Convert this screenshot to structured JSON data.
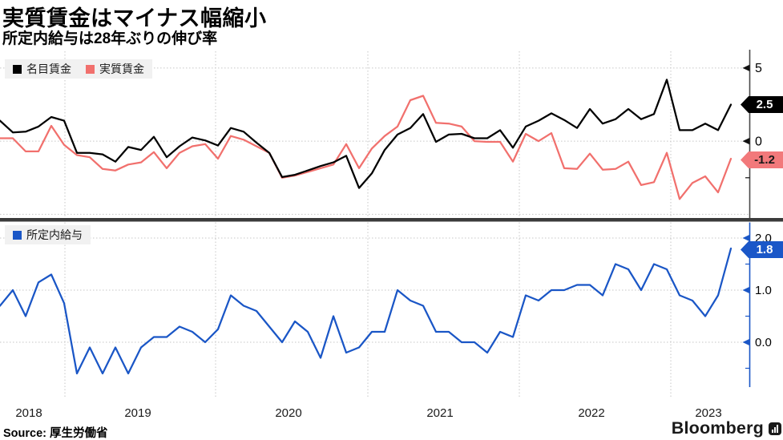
{
  "header": {
    "title": "実質賃金はマイナス幅縮小",
    "subtitle": "所定内給与は28年ぶりの伸び率"
  },
  "footer": {
    "source_label": "Source:",
    "source_value": "厚生労働省",
    "brand": "Bloomberg"
  },
  "colors": {
    "nominal_line": "#000000",
    "real_line": "#F1706D",
    "scheduled_line": "#1A56C6",
    "gridline": "#C6C6C6",
    "top_axis": "#4A4A4A",
    "bottom_axis": "#1A56C6",
    "divider": "#3B3B3B",
    "legend_bg": "#F1F1F1"
  },
  "chart_data": {
    "type": "line",
    "frequency": "monthly",
    "unit": "% YoY",
    "x_year_labels": [
      "2018",
      "2019",
      "2020",
      "2021",
      "2022",
      "2023"
    ],
    "months": [
      "2018-08",
      "2018-09",
      "2018-10",
      "2018-11",
      "2018-12",
      "2019-01",
      "2019-02",
      "2019-03",
      "2019-04",
      "2019-05",
      "2019-06",
      "2019-07",
      "2019-08",
      "2019-09",
      "2019-10",
      "2019-11",
      "2019-12",
      "2020-01",
      "2020-02",
      "2020-03",
      "2020-04",
      "2020-05",
      "2020-06",
      "2020-07",
      "2020-08",
      "2020-09",
      "2020-10",
      "2020-11",
      "2020-12",
      "2021-01",
      "2021-02",
      "2021-03",
      "2021-04",
      "2021-05",
      "2021-06",
      "2021-07",
      "2021-08",
      "2021-09",
      "2021-10",
      "2021-11",
      "2021-12",
      "2022-01",
      "2022-02",
      "2022-03",
      "2022-04",
      "2022-05",
      "2022-06",
      "2022-07",
      "2022-08",
      "2022-09",
      "2022-10",
      "2022-11",
      "2022-12",
      "2023-01",
      "2023-02",
      "2023-03",
      "2023-04",
      "2023-05"
    ],
    "series": [
      {
        "name": "名目賃金",
        "panel": 0,
        "color": "#000000",
        "values": [
          1.4,
          0.6,
          0.65,
          1.0,
          1.65,
          1.4,
          -0.8,
          -0.8,
          -0.9,
          -1.4,
          -0.4,
          -0.6,
          0.3,
          -1.1,
          -0.35,
          0.25,
          0.05,
          -0.3,
          0.9,
          0.65,
          -0.1,
          -0.8,
          -2.45,
          -2.3,
          -2.0,
          -1.7,
          -1.45,
          -1.0,
          -3.2,
          -2.2,
          -0.6,
          0.45,
          0.9,
          1.85,
          -0.05,
          0.45,
          0.5,
          0.2,
          0.2,
          0.75,
          -0.45,
          1.0,
          1.4,
          1.9,
          1.45,
          0.9,
          2.2,
          1.2,
          1.5,
          2.2,
          1.5,
          1.85,
          4.2,
          0.75,
          0.75,
          1.2,
          0.75,
          2.5
        ]
      },
      {
        "name": "実質賃金",
        "panel": 0,
        "color": "#F1706D",
        "values": [
          0.2,
          0.2,
          -0.7,
          -0.7,
          1.05,
          -0.25,
          -0.95,
          -1.1,
          -1.9,
          -2.0,
          -1.6,
          -1.45,
          -0.75,
          -1.85,
          -0.8,
          -0.35,
          -0.2,
          -1.2,
          0.35,
          0.1,
          -0.35,
          -0.8,
          -2.5,
          -2.35,
          -2.1,
          -1.85,
          -1.6,
          -0.2,
          -1.85,
          -0.5,
          0.35,
          1.0,
          2.8,
          3.1,
          1.25,
          1.2,
          1.0,
          0.0,
          -0.05,
          -0.05,
          -1.4,
          0.5,
          0.0,
          0.55,
          -1.85,
          -1.9,
          -0.85,
          -1.95,
          -1.9,
          -1.4,
          -3.0,
          -2.8,
          -0.8,
          -3.95,
          -2.85,
          -2.4,
          -3.5,
          -1.2
        ]
      },
      {
        "name": "所定内給与",
        "panel": 1,
        "color": "#1A56C6",
        "values": [
          0.7,
          1.0,
          0.5,
          1.15,
          1.3,
          0.75,
          -0.6,
          -0.1,
          -0.6,
          -0.1,
          -0.6,
          -0.1,
          0.1,
          0.1,
          0.3,
          0.2,
          0.0,
          0.25,
          0.9,
          0.7,
          0.6,
          0.3,
          0.0,
          0.4,
          0.2,
          -0.3,
          0.5,
          -0.2,
          -0.1,
          0.2,
          0.2,
          1.0,
          0.8,
          0.7,
          0.2,
          0.2,
          0.0,
          0.0,
          -0.2,
          0.2,
          0.1,
          0.9,
          0.8,
          1.0,
          1.0,
          1.1,
          1.1,
          0.9,
          1.5,
          1.4,
          1.0,
          1.5,
          1.4,
          0.9,
          0.8,
          0.5,
          0.9,
          1.8
        ]
      }
    ],
    "panels": [
      {
        "ylim": [
          -5.25,
          6.25
        ],
        "gridlines": [
          5,
          0,
          -5
        ],
        "ticks": [
          {
            "v": 5,
            "label": "5"
          },
          {
            "v": 0,
            "label": "0"
          }
        ],
        "minor_ticks": [
          2.5,
          -2.5
        ],
        "end_labels": [
          {
            "series": "名目賃金",
            "label": "2.5",
            "bg": "#000000",
            "fg": "#FFFFFF"
          },
          {
            "series": "実質賃金",
            "label": "-1.2",
            "bg": "#F2797B",
            "fg": "#1A1A1A"
          }
        ]
      },
      {
        "ylim": [
          -1.0,
          2.3
        ],
        "gridlines": [
          2,
          1,
          0
        ],
        "ticks": [
          {
            "v": 2,
            "label": "2.0"
          },
          {
            "v": 1,
            "label": "1.0"
          },
          {
            "v": 0,
            "label": "0.0"
          }
        ],
        "minor_ticks": [
          1.5,
          0.5,
          -0.5
        ],
        "end_labels": [
          {
            "series": "所定内給与",
            "label": "1.8",
            "bg": "#1A57C8",
            "fg": "#FFFFFF"
          }
        ]
      }
    ]
  }
}
